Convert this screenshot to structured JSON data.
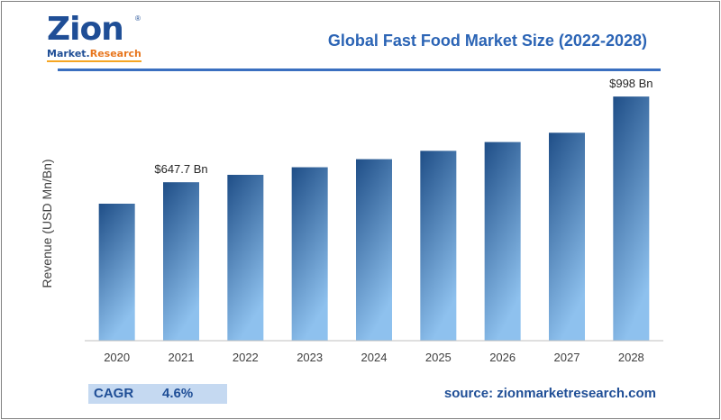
{
  "logo": {
    "word": "Zion",
    "tag_main": "Market.",
    "tag_accent": "Research",
    "reg": "®"
  },
  "chart_data": {
    "type": "bar",
    "title": "Global Fast Food Market Size (2022-2028)",
    "xlabel": "",
    "ylabel": "Revenue (USD Mn/Bn)",
    "categories": [
      "2020",
      "2021",
      "2022",
      "2023",
      "2024",
      "2025",
      "2026",
      "2027",
      "2028"
    ],
    "values": [
      560,
      647.7,
      678,
      709,
      742,
      776,
      812,
      850,
      998
    ],
    "data_labels": {
      "1": "$647.7 Bn",
      "8": "$998 Bn"
    },
    "ylim": [
      0,
      1050
    ],
    "grid": false,
    "bar_gradient": [
      "#1f4e87",
      "#8ec1ee"
    ]
  },
  "footer": {
    "cagr_label": "CAGR",
    "cagr_value": "4.6%",
    "source": "source: zionmarketresearch.com"
  }
}
